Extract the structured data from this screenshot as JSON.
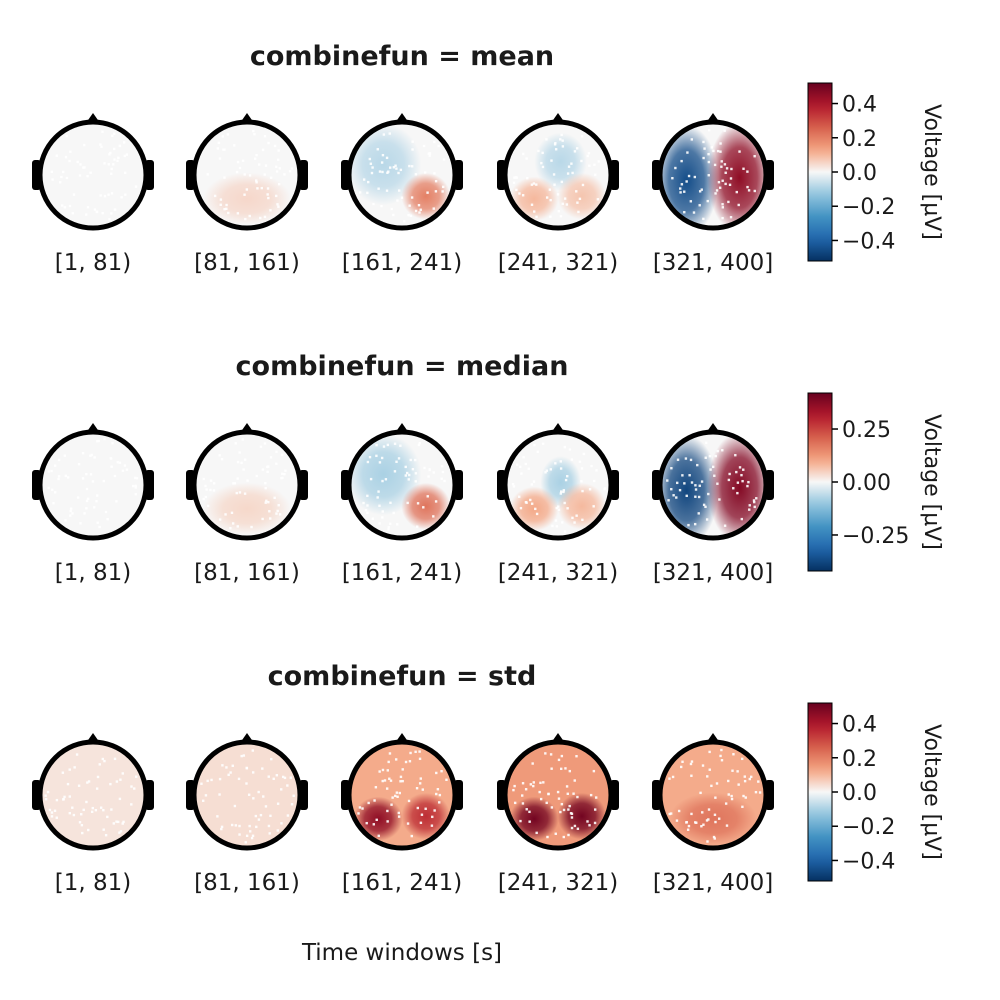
{
  "chart_data": {
    "type": "heatmap",
    "subtype": "topoplot-series",
    "xlabel": "Time windows [s]",
    "windows": [
      "[1, 81)",
      "[81, 161)",
      "[161, 241)",
      "[241, 321)",
      "[321, 400]"
    ],
    "colormap": "diverging red-white-blue (blue negative, red positive)",
    "colors": {
      "negative": "#053061",
      "zero": "#f7f7f7",
      "positive": "#67001f"
    },
    "rows": [
      {
        "title": "combinefun = mean",
        "colorbar": {
          "label": "Voltage [µV]",
          "range": [
            -0.52,
            0.52
          ],
          "ticks": [
            0.4,
            0.2,
            0.0,
            -0.2,
            -0.4
          ],
          "tick_labels": [
            "0.4",
            "0.2",
            "0.0",
            "−0.2",
            "−0.4"
          ]
        },
        "maps": [
          {
            "window": "[1, 81)",
            "regions": [
              {
                "area": "whole scalp",
                "value": 0.0
              }
            ]
          },
          {
            "window": "[81, 161)",
            "regions": [
              {
                "area": "whole scalp",
                "value": 0.0
              },
              {
                "area": "posterior",
                "value": 0.05
              }
            ]
          },
          {
            "window": "[161, 241)",
            "regions": [
              {
                "area": "left/frontal",
                "value": -0.08
              },
              {
                "area": "right posterior",
                "value": 0.2
              }
            ]
          },
          {
            "window": "[241, 321)",
            "regions": [
              {
                "area": "frontal-central",
                "value": -0.08
              },
              {
                "area": "left posterior",
                "value": 0.1
              },
              {
                "area": "right posterior",
                "value": 0.08
              }
            ]
          },
          {
            "window": "[321, 400]",
            "regions": [
              {
                "area": "left hemisphere",
                "value": -0.45
              },
              {
                "area": "right hemisphere",
                "value": 0.45
              }
            ]
          }
        ]
      },
      {
        "title": "combinefun = median",
        "colorbar": {
          "label": "Voltage [µV]",
          "range": [
            -0.42,
            0.42
          ],
          "ticks": [
            0.25,
            0.0,
            -0.25
          ],
          "tick_labels": [
            "0.25",
            "0.00",
            "−0.25"
          ]
        },
        "maps": [
          {
            "window": "[1, 81)",
            "regions": [
              {
                "area": "whole scalp",
                "value": 0.0
              }
            ]
          },
          {
            "window": "[81, 161)",
            "regions": [
              {
                "area": "whole scalp",
                "value": 0.0
              },
              {
                "area": "posterior",
                "value": 0.04
              }
            ]
          },
          {
            "window": "[161, 241)",
            "regions": [
              {
                "area": "left/frontal",
                "value": -0.08
              },
              {
                "area": "right posterior",
                "value": 0.18
              }
            ]
          },
          {
            "window": "[241, 321)",
            "regions": [
              {
                "area": "central",
                "value": -0.08
              },
              {
                "area": "left posterior",
                "value": 0.1
              },
              {
                "area": "right posterior",
                "value": 0.08
              }
            ]
          },
          {
            "window": "[321, 400]",
            "regions": [
              {
                "area": "left hemisphere",
                "value": -0.38
              },
              {
                "area": "right hemisphere",
                "value": 0.38
              }
            ]
          }
        ]
      },
      {
        "title": "combinefun = std",
        "colorbar": {
          "label": "Voltage [µV]",
          "range": [
            -0.52,
            0.52
          ],
          "ticks": [
            0.4,
            0.2,
            0.0,
            -0.2,
            -0.4
          ],
          "tick_labels": [
            "0.4",
            "0.2",
            "0.0",
            "−0.2",
            "−0.4"
          ]
        },
        "maps": [
          {
            "window": "[1, 81)",
            "regions": [
              {
                "area": "whole scalp",
                "value": 0.03
              }
            ]
          },
          {
            "window": "[81, 161)",
            "regions": [
              {
                "area": "whole scalp",
                "value": 0.04
              }
            ]
          },
          {
            "window": "[161, 241)",
            "regions": [
              {
                "area": "whole scalp",
                "value": 0.12
              },
              {
                "area": "left posterior",
                "value": 0.45
              },
              {
                "area": "right posterior",
                "value": 0.35
              }
            ]
          },
          {
            "window": "[241, 321)",
            "regions": [
              {
                "area": "whole scalp",
                "value": 0.15
              },
              {
                "area": "left posterior",
                "value": 0.5
              },
              {
                "area": "right posterior",
                "value": 0.5
              }
            ]
          },
          {
            "window": "[321, 400]",
            "regions": [
              {
                "area": "whole scalp",
                "value": 0.12
              },
              {
                "area": "posterior",
                "value": 0.22
              }
            ]
          }
        ]
      }
    ]
  }
}
